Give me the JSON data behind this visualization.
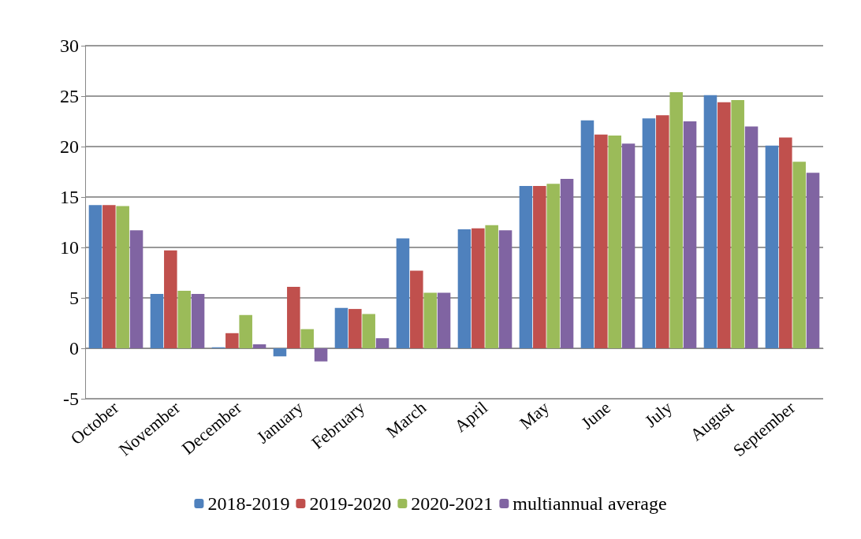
{
  "chart_data": {
    "type": "bar",
    "categories": [
      "October",
      "November",
      "December",
      "January",
      "February",
      "March",
      "April",
      "May",
      "June",
      "July",
      "August",
      "September"
    ],
    "series": [
      {
        "name": "2018-2019",
        "color": "#4f81bd",
        "values": [
          14.2,
          5.4,
          0.1,
          -0.8,
          4.0,
          10.9,
          11.8,
          16.1,
          22.6,
          22.8,
          25.1,
          20.1
        ]
      },
      {
        "name": "2019-2020",
        "color": "#c0504d",
        "values": [
          14.2,
          9.7,
          1.5,
          6.1,
          3.9,
          7.7,
          11.9,
          16.1,
          21.2,
          23.1,
          24.4,
          20.9
        ]
      },
      {
        "name": "2020-2021",
        "color": "#9bbb59",
        "values": [
          14.1,
          5.7,
          3.3,
          1.9,
          3.4,
          5.5,
          12.2,
          16.3,
          21.1,
          25.4,
          24.6,
          18.5
        ]
      },
      {
        "name": "multiannual average",
        "color": "#8064a2",
        "values": [
          11.7,
          5.4,
          0.4,
          -1.3,
          1.0,
          5.5,
          11.7,
          16.8,
          20.3,
          22.5,
          22.0,
          17.4
        ]
      }
    ],
    "ylim": [
      -5,
      30
    ],
    "yticks": [
      -5,
      0,
      5,
      10,
      15,
      20,
      25,
      30
    ],
    "grid": "y",
    "legend": "bottom"
  }
}
